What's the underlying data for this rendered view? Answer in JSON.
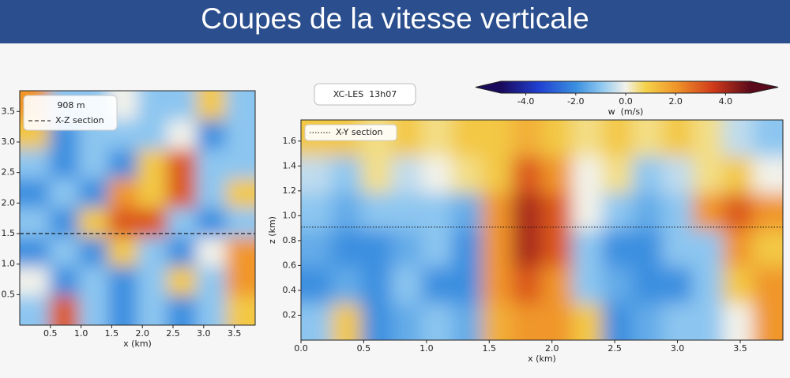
{
  "title": "Coupes de la vitesse verticale",
  "chart_data": [
    {
      "type": "heatmap",
      "annotation": "908 m",
      "section_line": {
        "label": "X-Z section",
        "y": 1.5,
        "style": "dashed"
      },
      "xlabel": "x (km)",
      "xlim": [
        0,
        3.84
      ],
      "ylim": [
        0,
        3.84
      ],
      "xticks": [
        0.5,
        {
          "value": 1,
          "label": "1.0"
        },
        1.5,
        {
          "value": 2,
          "label": "2.0"
        },
        2.5,
        {
          "value": 3,
          "label": "3.0"
        },
        3.5
      ],
      "yticks": [
        0.5,
        {
          "value": 1,
          "label": "1.0"
        },
        1.5,
        {
          "value": 2,
          "label": "2.0"
        },
        2.5,
        {
          "value": 3,
          "label": "3.0"
        },
        3.5
      ],
      "z": [
        [
          2,
          -1,
          -1,
          0,
          -1,
          -1,
          1,
          -1
        ],
        [
          1,
          -2,
          -1,
          -1,
          -1,
          0,
          -2,
          -1
        ],
        [
          -1,
          -2,
          -1,
          -2,
          1,
          3,
          -1,
          -1
        ],
        [
          -2,
          -1,
          -2,
          2,
          1,
          3,
          -1,
          1
        ],
        [
          -1,
          -2,
          1,
          3,
          3,
          -1,
          -2,
          -1
        ],
        [
          -2,
          -1,
          -2,
          1,
          -1,
          -2,
          0,
          2
        ],
        [
          0,
          -2,
          -1,
          -2,
          -1,
          1,
          -1,
          2
        ],
        [
          -1,
          3,
          -1,
          -2,
          -1,
          -2,
          -1,
          1
        ]
      ]
    },
    {
      "type": "heatmap",
      "annotation": "XC-LES  13h07",
      "section_line": {
        "label": "X-Y section",
        "y": 0.908,
        "style": "dotted"
      },
      "xlabel": "x (km)",
      "ylabel": "z (km)",
      "xlim": [
        0,
        3.84
      ],
      "ylim": [
        0,
        1.77
      ],
      "xticks": [
        {
          "value": 0,
          "label": "0.0"
        },
        0.5,
        {
          "value": 1,
          "label": "1.0"
        },
        1.5,
        {
          "value": 2,
          "label": "2.0"
        },
        2.5,
        {
          "value": 3,
          "label": "3.0"
        },
        3.5
      ],
      "yticks": [
        0.2,
        0.4,
        0.6,
        0.8,
        {
          "value": 1,
          "label": "1.0"
        },
        1.2,
        1.4,
        1.6
      ],
      "z": [
        [
          1,
          1,
          0.5,
          1,
          0.5,
          1,
          1,
          1.5,
          1,
          0.5,
          1,
          0.5,
          1,
          0.5,
          -0.5,
          -1
        ],
        [
          -0.5,
          -1,
          0.5,
          -0.5,
          0,
          0.5,
          1,
          3,
          2,
          0,
          0.5,
          -1,
          -0.5,
          0.5,
          1,
          0
        ],
        [
          -1,
          -1.5,
          -1,
          -1,
          -1,
          -1.5,
          2,
          4,
          3,
          0,
          -1,
          -1.5,
          -1,
          2,
          3,
          2
        ],
        [
          -1.5,
          -2,
          -2,
          -1.5,
          -1,
          -2,
          2,
          4,
          3,
          -1,
          -2,
          -2,
          -1,
          -1,
          2,
          1
        ],
        [
          -2,
          -1.5,
          -2,
          -1,
          -2,
          -2,
          2,
          3,
          2,
          -1,
          -1.5,
          -2,
          -2,
          -1,
          1,
          2
        ],
        [
          -1,
          1,
          -2,
          -1.5,
          -1,
          -1.5,
          1.5,
          2,
          2,
          1,
          -2,
          -1.5,
          -1,
          -1,
          0,
          2
        ]
      ],
      "colorbar": {
        "label": "w  (m/s)",
        "lim": [
          -5,
          5
        ],
        "ticks": [
          {
            "value": -4,
            "label": "-4.0"
          },
          {
            "value": -2,
            "label": "-2.0"
          },
          {
            "value": 0,
            "label": "0.0"
          },
          {
            "value": 2,
            "label": "2.0"
          },
          {
            "value": 4,
            "label": "4.0"
          }
        ]
      }
    }
  ]
}
